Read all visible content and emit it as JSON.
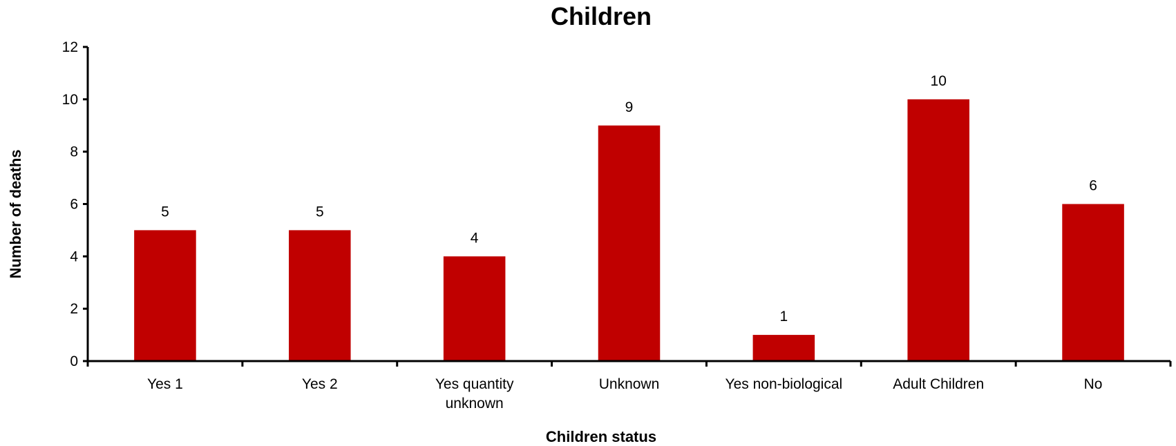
{
  "chart_data": {
    "type": "bar",
    "title": "Children",
    "xlabel": "Children status",
    "ylabel": "Number of deaths",
    "categories": [
      [
        "Yes 1"
      ],
      [
        "Yes 2"
      ],
      [
        "Yes quantity",
        "unknown"
      ],
      [
        "Unknown"
      ],
      [
        "Yes non-biological"
      ],
      [
        "Adult Children"
      ],
      [
        "No"
      ]
    ],
    "values": [
      5,
      5,
      4,
      9,
      1,
      10,
      6
    ],
    "ylim": [
      0,
      12
    ],
    "yticks": [
      0,
      2,
      4,
      6,
      8,
      10,
      12
    ],
    "data_labels": true,
    "grid": false,
    "legend": "none",
    "bar_color": "#C00000"
  }
}
